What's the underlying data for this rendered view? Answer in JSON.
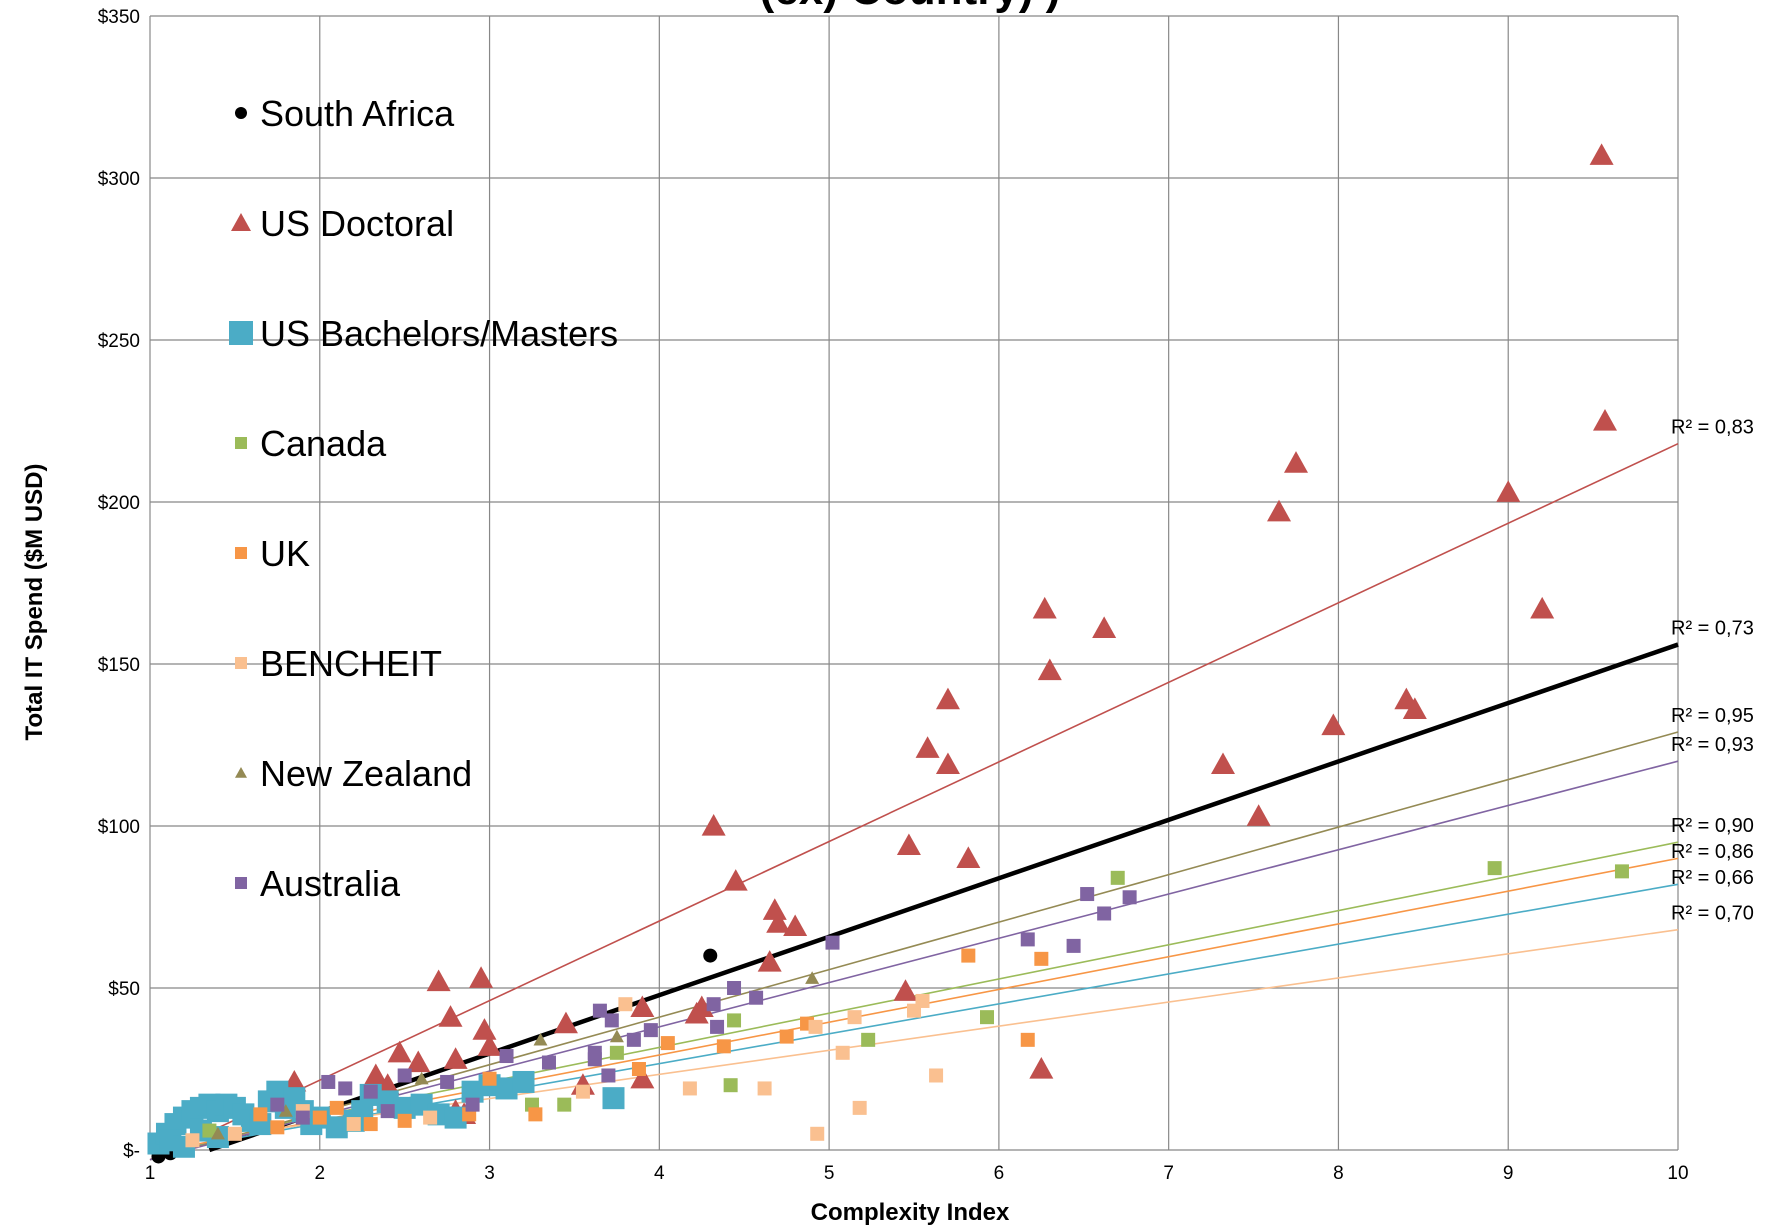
{
  "chart_data": {
    "type": "scatter",
    "title": "(ex) Country) )",
    "xlabel": "Complexity Index",
    "ylabel": "Total IT Spend ($M USD)",
    "xlim": [
      1,
      10
    ],
    "ylim": [
      0,
      350
    ],
    "x_ticks": [
      "1",
      "2",
      "3",
      "4",
      "5",
      "6",
      "7",
      "8",
      "9",
      "10"
    ],
    "y_ticks": [
      "$-",
      "$50",
      "$100",
      "$150",
      "$200",
      "$250",
      "$300",
      "$350"
    ],
    "grid": true,
    "legend_position": "top-left",
    "series": [
      {
        "name": "South Africa",
        "marker": "circle",
        "color": "#000000",
        "points": [
          [
            4.3,
            60
          ],
          [
            1.05,
            -2
          ],
          [
            1.12,
            -1
          ]
        ],
        "trendline": {
          "x0": 1.35,
          "y0": 0,
          "x1": 10,
          "y1": 156
        },
        "r2_label": ""
      },
      {
        "name": "US Doctoral",
        "marker": "triangle",
        "color": "#C0504D",
        "points": [
          [
            9.55,
            307
          ],
          [
            9.57,
            225
          ],
          [
            7.75,
            212
          ],
          [
            7.65,
            197
          ],
          [
            9.0,
            203
          ],
          [
            9.2,
            167
          ],
          [
            6.27,
            167
          ],
          [
            6.62,
            161
          ],
          [
            6.3,
            148
          ],
          [
            5.7,
            139
          ],
          [
            8.4,
            139
          ],
          [
            8.45,
            136
          ],
          [
            7.97,
            131
          ],
          [
            5.58,
            124
          ],
          [
            5.7,
            119
          ],
          [
            7.32,
            119
          ],
          [
            7.53,
            103
          ],
          [
            4.32,
            100
          ],
          [
            5.47,
            94
          ],
          [
            5.82,
            90
          ],
          [
            4.45,
            83
          ],
          [
            4.68,
            74
          ],
          [
            4.7,
            70
          ],
          [
            4.8,
            69
          ],
          [
            4.65,
            58
          ],
          [
            2.95,
            53
          ],
          [
            2.7,
            52
          ],
          [
            5.45,
            49
          ],
          [
            3.9,
            44
          ],
          [
            4.25,
            44
          ],
          [
            4.22,
            42
          ],
          [
            2.77,
            41
          ],
          [
            3.45,
            39
          ],
          [
            2.97,
            37
          ],
          [
            2.47,
            30
          ],
          [
            2.58,
            27
          ],
          [
            2.8,
            28
          ],
          [
            2.33,
            23
          ],
          [
            2.4,
            20
          ],
          [
            3.9,
            22
          ],
          [
            3.55,
            20
          ],
          [
            1.85,
            21
          ],
          [
            2.8,
            12
          ],
          [
            2.85,
            11
          ],
          [
            6.25,
            25
          ],
          [
            3.0,
            32
          ]
        ],
        "trendline": {
          "x0": 1.0,
          "y0": -5,
          "x1": 10,
          "y1": 218
        },
        "r2_label": "R² = 0,83"
      },
      {
        "name": "US Bachelors/Masters",
        "marker": "square",
        "color": "#4BACC6",
        "points": [
          [
            1.05,
            2
          ],
          [
            1.1,
            5
          ],
          [
            1.15,
            8
          ],
          [
            1.2,
            10
          ],
          [
            1.25,
            12
          ],
          [
            1.3,
            13
          ],
          [
            1.35,
            14
          ],
          [
            1.4,
            12
          ],
          [
            1.45,
            14
          ],
          [
            1.5,
            13
          ],
          [
            1.55,
            11
          ],
          [
            1.6,
            9
          ],
          [
            1.65,
            8
          ],
          [
            1.7,
            15
          ],
          [
            1.75,
            18
          ],
          [
            1.8,
            13
          ],
          [
            1.85,
            16
          ],
          [
            1.9,
            12
          ],
          [
            1.95,
            8
          ],
          [
            2.0,
            10
          ],
          [
            2.1,
            7
          ],
          [
            2.2,
            9
          ],
          [
            2.25,
            12
          ],
          [
            2.3,
            17
          ],
          [
            2.4,
            15
          ],
          [
            2.5,
            13
          ],
          [
            2.6,
            14
          ],
          [
            2.7,
            11
          ],
          [
            2.8,
            10
          ],
          [
            2.9,
            18
          ],
          [
            3.0,
            20
          ],
          [
            3.1,
            19
          ],
          [
            3.2,
            21
          ],
          [
            3.73,
            16
          ],
          [
            1.12,
            3
          ],
          [
            1.2,
            1
          ],
          [
            1.3,
            6
          ],
          [
            1.4,
            4
          ]
        ],
        "trendline": {
          "x0": 1.0,
          "y0": -1,
          "x1": 10,
          "y1": 82
        },
        "r2_label": "R² = 0,66"
      },
      {
        "name": "Canada",
        "marker": "square",
        "color": "#9BBB59",
        "points": [
          [
            6.7,
            84
          ],
          [
            8.92,
            87
          ],
          [
            9.67,
            86
          ],
          [
            5.93,
            41
          ],
          [
            4.44,
            40
          ],
          [
            4.42,
            20
          ],
          [
            3.44,
            14
          ],
          [
            3.25,
            14
          ],
          [
            5.23,
            34
          ],
          [
            3.75,
            30
          ],
          [
            2.2,
            8
          ],
          [
            1.35,
            6
          ]
        ],
        "trendline": {
          "x0": 1.0,
          "y0": 0,
          "x1": 10,
          "y1": 95
        },
        "r2_label": "R² = 0,90"
      },
      {
        "name": "UK",
        "marker": "square",
        "color": "#F79646",
        "points": [
          [
            5.82,
            60
          ],
          [
            6.25,
            59
          ],
          [
            6.17,
            34
          ],
          [
            4.87,
            39
          ],
          [
            4.75,
            35
          ],
          [
            3.88,
            25
          ],
          [
            4.05,
            33
          ],
          [
            3.27,
            11
          ],
          [
            2.88,
            11
          ],
          [
            2.3,
            8
          ],
          [
            2.0,
            10
          ],
          [
            1.65,
            11
          ],
          [
            1.75,
            7
          ],
          [
            2.1,
            13
          ],
          [
            2.5,
            9
          ],
          [
            3.0,
            22
          ],
          [
            4.38,
            32
          ]
        ],
        "trendline": {
          "x0": 1.0,
          "y0": -1,
          "x1": 10,
          "y1": 90
        },
        "r2_label": "R² = 0,86"
      },
      {
        "name": "BENCHEIT",
        "marker": "square",
        "color": "#FAC090",
        "points": [
          [
            5.55,
            46
          ],
          [
            5.5,
            43
          ],
          [
            5.15,
            41
          ],
          [
            5.08,
            30
          ],
          [
            4.92,
            38
          ],
          [
            4.62,
            19
          ],
          [
            4.18,
            19
          ],
          [
            5.63,
            23
          ],
          [
            5.18,
            13
          ],
          [
            4.93,
            5
          ],
          [
            3.8,
            45
          ],
          [
            3.55,
            18
          ],
          [
            2.65,
            10
          ],
          [
            2.2,
            8
          ],
          [
            1.5,
            5
          ],
          [
            1.25,
            3
          ],
          [
            1.9,
            12
          ]
        ],
        "trendline": {
          "x0": 1.0,
          "y0": 1,
          "x1": 10,
          "y1": 68
        },
        "r2_label": "R² = 0,70"
      },
      {
        "name": "New Zealand",
        "marker": "triangle-small",
        "color": "#948A54",
        "points": [
          [
            4.9,
            53
          ],
          [
            3.3,
            34
          ],
          [
            2.6,
            22
          ],
          [
            1.8,
            12
          ],
          [
            1.4,
            5
          ],
          [
            3.75,
            35
          ]
        ],
        "trendline": {
          "x0": 1.0,
          "y0": -3,
          "x1": 10,
          "y1": 129
        },
        "r2_label": "R² = 0,95"
      },
      {
        "name": "Australia",
        "marker": "square",
        "color": "#8064A2",
        "points": [
          [
            6.52,
            79
          ],
          [
            6.77,
            78
          ],
          [
            6.62,
            73
          ],
          [
            6.17,
            65
          ],
          [
            6.44,
            63
          ],
          [
            5.02,
            64
          ],
          [
            4.44,
            50
          ],
          [
            4.57,
            47
          ],
          [
            4.32,
            45
          ],
          [
            4.34,
            38
          ],
          [
            3.65,
            43
          ],
          [
            3.72,
            40
          ],
          [
            3.62,
            30
          ],
          [
            3.95,
            37
          ],
          [
            3.85,
            34
          ],
          [
            3.62,
            28
          ],
          [
            3.35,
            27
          ],
          [
            3.1,
            29
          ],
          [
            2.75,
            21
          ],
          [
            2.05,
            21
          ],
          [
            2.15,
            19
          ],
          [
            2.3,
            18
          ],
          [
            2.5,
            23
          ],
          [
            1.75,
            14
          ],
          [
            1.9,
            10
          ],
          [
            2.4,
            12
          ],
          [
            2.9,
            14
          ],
          [
            3.7,
            23
          ]
        ],
        "trendline": {
          "x0": 1.0,
          "y0": -6,
          "x1": 10,
          "y1": 120
        },
        "r2_label": "R² = 0,93"
      }
    ],
    "extra_labels": [
      "R² = 0,73"
    ]
  }
}
